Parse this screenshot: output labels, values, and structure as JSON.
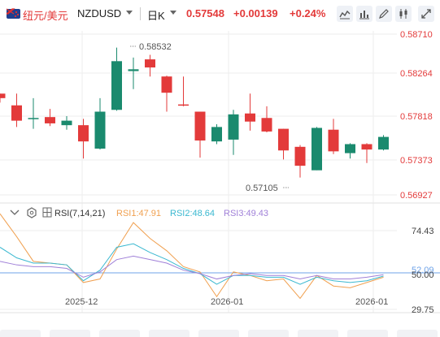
{
  "header": {
    "pair_cn": "纽元/美元",
    "pair_code": "NZDUSD",
    "period": "日K",
    "price": "0.57548",
    "change": "+0.00139",
    "change_pct": "+0.24%"
  },
  "toolbar_icons": [
    "line-chart-icon",
    "bar-chart-icon",
    "edit-icon",
    "candle-settings-icon",
    "fullscreen-icon"
  ],
  "colors": {
    "up": "#e33a3a",
    "down": "#1a8a6e",
    "rsi1": "#f0a050",
    "rsi2": "#3ab8d0",
    "rsi3": "#a080d8"
  },
  "price_axis": {
    "labels": [
      "0.58710",
      "0.58264",
      "0.57818",
      "0.57373",
      "0.56927"
    ],
    "label_color": "#e33a3a"
  },
  "annotations": {
    "high": "0.58532",
    "low": "0.57105"
  },
  "rsi": {
    "title": "RSI(7,14,21)",
    "rsi1_label": "RSI1:47.91",
    "rsi2_label": "RSI2:48.64",
    "rsi3_label": "RSI3:49.43",
    "axis_labels": [
      "74.43",
      "52.09",
      "50.00",
      "29.75"
    ]
  },
  "x_axis": {
    "labels": [
      "2025-12",
      "2026-01",
      "2026-01"
    ]
  },
  "chart_data": [
    {
      "type": "candlestick",
      "y_range": [
        0.56927,
        0.5871
      ],
      "candles": [
        {
          "o": 0.5805,
          "h": 0.5805,
          "l": 0.5795,
          "c": 0.58
        },
        {
          "o": 0.5792,
          "h": 0.5805,
          "l": 0.5768,
          "c": 0.5775
        },
        {
          "o": 0.5778,
          "h": 0.58,
          "l": 0.5766,
          "c": 0.5778
        },
        {
          "o": 0.5779,
          "h": 0.5788,
          "l": 0.5769,
          "c": 0.5772
        },
        {
          "o": 0.577,
          "h": 0.578,
          "l": 0.5765,
          "c": 0.5775
        },
        {
          "o": 0.577,
          "h": 0.5777,
          "l": 0.5733,
          "c": 0.5752
        },
        {
          "o": 0.5744,
          "h": 0.58,
          "l": 0.5743,
          "c": 0.5785
        },
        {
          "o": 0.5787,
          "h": 0.5856,
          "l": 0.5786,
          "c": 0.5841
        },
        {
          "o": 0.583,
          "h": 0.5845,
          "l": 0.581,
          "c": 0.5832
        },
        {
          "o": 0.5843,
          "h": 0.5848,
          "l": 0.5824,
          "c": 0.5834
        },
        {
          "o": 0.5824,
          "h": 0.5825,
          "l": 0.5785,
          "c": 0.5806
        },
        {
          "o": 0.5793,
          "h": 0.5824,
          "l": 0.5791,
          "c": 0.5792
        },
        {
          "o": 0.5785,
          "h": 0.5785,
          "l": 0.5734,
          "c": 0.5753
        },
        {
          "o": 0.5752,
          "h": 0.5771,
          "l": 0.5749,
          "c": 0.5768
        },
        {
          "o": 0.5754,
          "h": 0.5787,
          "l": 0.5737,
          "c": 0.5782
        },
        {
          "o": 0.5783,
          "h": 0.5805,
          "l": 0.5764,
          "c": 0.5774
        },
        {
          "o": 0.5778,
          "h": 0.5791,
          "l": 0.5762,
          "c": 0.5763
        },
        {
          "o": 0.5766,
          "h": 0.5766,
          "l": 0.5732,
          "c": 0.5742
        },
        {
          "o": 0.5746,
          "h": 0.5748,
          "l": 0.5712,
          "c": 0.5725
        },
        {
          "o": 0.572,
          "h": 0.5768,
          "l": 0.572,
          "c": 0.5767
        },
        {
          "o": 0.5765,
          "h": 0.5777,
          "l": 0.5738,
          "c": 0.5741
        },
        {
          "o": 0.5739,
          "h": 0.575,
          "l": 0.5733,
          "c": 0.5749
        },
        {
          "o": 0.5749,
          "h": 0.575,
          "l": 0.5728,
          "c": 0.5743
        },
        {
          "o": 0.5743,
          "h": 0.5759,
          "l": 0.5742,
          "c": 0.5757
        }
      ]
    },
    {
      "type": "line",
      "title": "RSI(7,14,21)",
      "y_range": [
        29.75,
        74.43
      ],
      "series": [
        {
          "name": "RSI1",
          "values": [
            84,
            71,
            57,
            56,
            55,
            45,
            47,
            64,
            79,
            70,
            63,
            54,
            51,
            37,
            51,
            49,
            46,
            47,
            36,
            49,
            43,
            42,
            45,
            48
          ]
        },
        {
          "name": "RSI2",
          "values": [
            65,
            59,
            56,
            56,
            55,
            46,
            52,
            65,
            67,
            62,
            58,
            53,
            50,
            44,
            49,
            49,
            48,
            48,
            44,
            48,
            46,
            45,
            46,
            48.64
          ]
        },
        {
          "name": "RSI3",
          "values": [
            57,
            55,
            54,
            54,
            53,
            48,
            51,
            58,
            60,
            58,
            56,
            52,
            50,
            47,
            49,
            50,
            49,
            49,
            47,
            49,
            47,
            47,
            48,
            49.43
          ]
        }
      ],
      "reference_line": 50
    }
  ]
}
